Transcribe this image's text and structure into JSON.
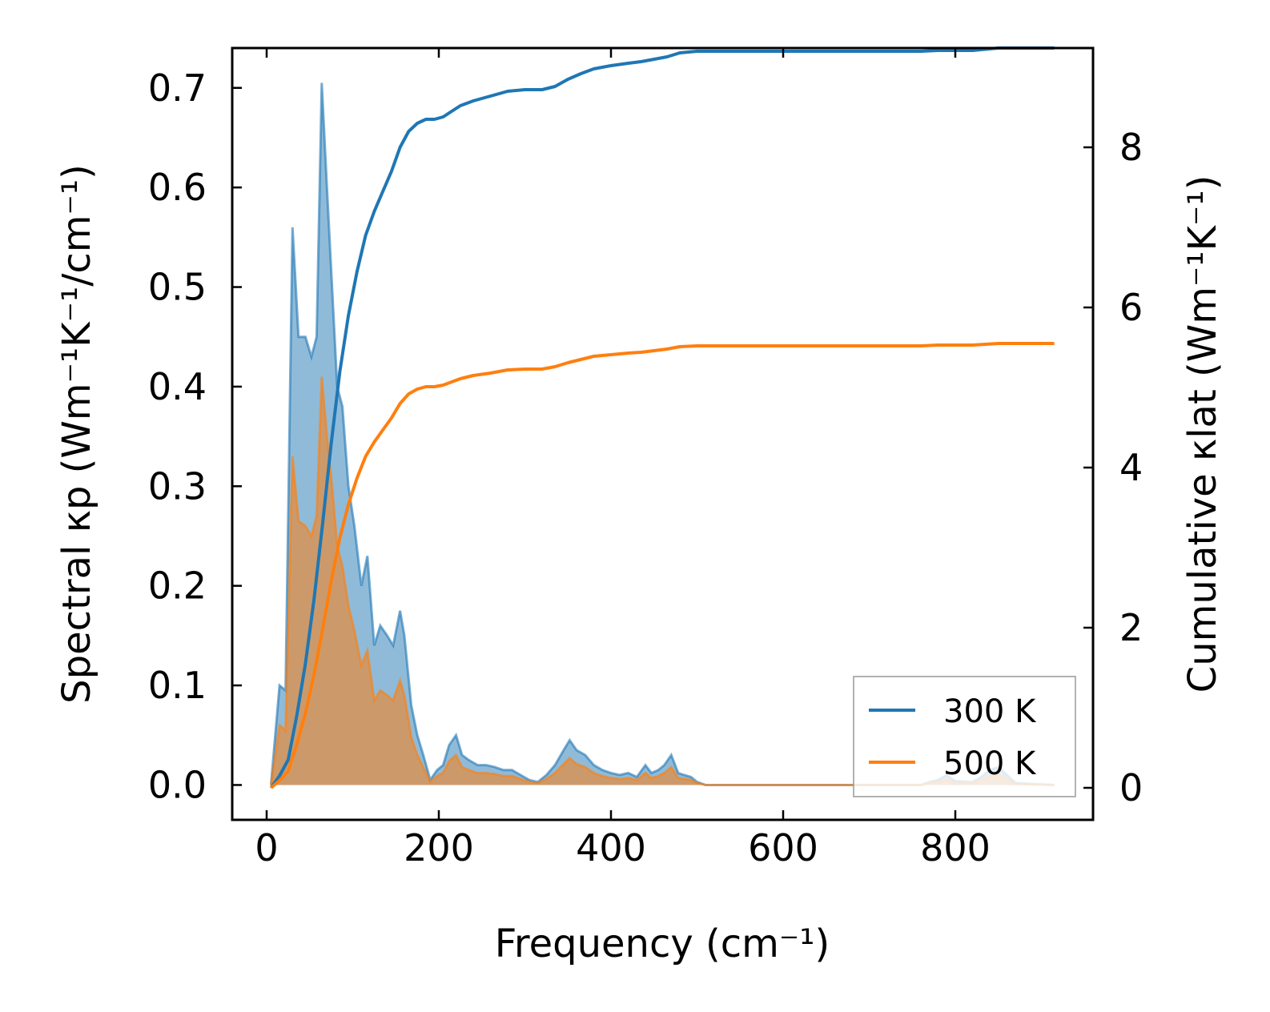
{
  "chart_data": {
    "type": "area+line (dual y-axis)",
    "xlabel": "Frequency (cm⁻¹)",
    "ylabel_left": "Spectral κp (Wm⁻¹K⁻¹/cm⁻¹)",
    "ylabel_right": "Cumulative κlat (Wm⁻¹K⁻¹)",
    "xlim": [
      -40,
      960
    ],
    "ylim_left": [
      -0.035,
      0.74
    ],
    "ylim_right": [
      -0.4,
      9.24
    ],
    "x_ticks": [
      "0",
      "200",
      "400",
      "600",
      "800"
    ],
    "x_tick_values": [
      0,
      200,
      400,
      600,
      800
    ],
    "y_left_ticks": [
      "0.0",
      "0.1",
      "0.2",
      "0.3",
      "0.4",
      "0.5",
      "0.6",
      "0.7"
    ],
    "y_left_tick_values": [
      0.0,
      0.1,
      0.2,
      0.3,
      0.4,
      0.5,
      0.6,
      0.7
    ],
    "y_right_ticks": [
      "0",
      "2",
      "4",
      "6",
      "8"
    ],
    "y_right_tick_values": [
      0,
      2,
      4,
      6,
      8
    ],
    "legend": {
      "location": "lower right",
      "entries": [
        "300 K",
        "500 K"
      ]
    },
    "colors": {
      "300 K": "#1f77b4",
      "500 K": "#ff7f0e"
    },
    "series": [
      {
        "name": "300 K",
        "spectral": {
          "x": [
            5,
            15,
            22,
            30,
            37,
            45,
            52,
            58,
            64,
            70,
            76,
            82,
            88,
            95,
            102,
            110,
            117,
            125,
            132,
            140,
            147,
            155,
            160,
            168,
            175,
            182,
            190,
            198,
            205,
            212,
            220,
            227,
            235,
            245,
            255,
            265,
            275,
            285,
            295,
            305,
            315,
            325,
            335,
            345,
            352,
            360,
            370,
            380,
            390,
            400,
            410,
            420,
            430,
            440,
            447,
            455,
            462,
            470,
            478,
            485,
            493,
            500,
            510,
            760,
            770,
            780,
            790,
            800,
            820,
            830,
            840,
            850,
            860,
            870,
            915
          ],
          "y": [
            0.0,
            0.1,
            0.095,
            0.56,
            0.45,
            0.45,
            0.43,
            0.45,
            0.705,
            0.6,
            0.5,
            0.4,
            0.38,
            0.3,
            0.26,
            0.2,
            0.23,
            0.14,
            0.16,
            0.15,
            0.14,
            0.175,
            0.15,
            0.08,
            0.05,
            0.03,
            0.005,
            0.015,
            0.02,
            0.04,
            0.05,
            0.03,
            0.025,
            0.02,
            0.02,
            0.018,
            0.015,
            0.015,
            0.01,
            0.005,
            0.003,
            0.01,
            0.02,
            0.035,
            0.045,
            0.035,
            0.03,
            0.02,
            0.015,
            0.012,
            0.01,
            0.012,
            0.008,
            0.02,
            0.012,
            0.015,
            0.02,
            0.03,
            0.012,
            0.01,
            0.008,
            0.003,
            0.0,
            0.0,
            0.003,
            0.005,
            0.01,
            0.004,
            0.003,
            0.008,
            0.015,
            0.018,
            0.01,
            0.002,
            0.0
          ]
        },
        "cumulative": {
          "x": [
            5,
            15,
            25,
            35,
            45,
            55,
            65,
            75,
            85,
            95,
            105,
            115,
            125,
            135,
            145,
            155,
            165,
            175,
            185,
            195,
            205,
            215,
            225,
            240,
            260,
            280,
            300,
            320,
            335,
            350,
            365,
            380,
            400,
            420,
            435,
            450,
            465,
            480,
            500,
            520,
            600,
            760,
            780,
            820,
            850,
            915
          ],
          "y": [
            0.0,
            0.15,
            0.35,
            0.9,
            1.55,
            2.35,
            3.3,
            4.3,
            5.2,
            5.9,
            6.45,
            6.9,
            7.2,
            7.45,
            7.7,
            8.0,
            8.2,
            8.3,
            8.35,
            8.35,
            8.38,
            8.45,
            8.52,
            8.58,
            8.64,
            8.7,
            8.72,
            8.72,
            8.76,
            8.85,
            8.92,
            8.98,
            9.02,
            9.05,
            9.07,
            9.1,
            9.13,
            9.18,
            9.2,
            9.2,
            9.2,
            9.2,
            9.21,
            9.21,
            9.24,
            9.24
          ]
        }
      },
      {
        "name": "500 K",
        "spectral": {
          "x": [
            5,
            15,
            22,
            30,
            37,
            45,
            52,
            58,
            64,
            70,
            76,
            82,
            88,
            95,
            102,
            110,
            117,
            125,
            132,
            140,
            147,
            155,
            160,
            168,
            175,
            182,
            190,
            198,
            205,
            212,
            220,
            227,
            235,
            245,
            255,
            265,
            275,
            285,
            295,
            305,
            315,
            325,
            335,
            345,
            352,
            360,
            370,
            380,
            390,
            400,
            410,
            420,
            430,
            440,
            447,
            455,
            462,
            470,
            478,
            485,
            493,
            500,
            510,
            760,
            770,
            780,
            790,
            800,
            820,
            830,
            840,
            850,
            860,
            870,
            915
          ],
          "y": [
            0.0,
            0.06,
            0.055,
            0.33,
            0.265,
            0.26,
            0.25,
            0.27,
            0.41,
            0.35,
            0.3,
            0.24,
            0.22,
            0.18,
            0.155,
            0.12,
            0.135,
            0.085,
            0.095,
            0.09,
            0.085,
            0.105,
            0.09,
            0.048,
            0.03,
            0.018,
            0.003,
            0.009,
            0.012,
            0.024,
            0.03,
            0.018,
            0.015,
            0.012,
            0.012,
            0.011,
            0.009,
            0.009,
            0.006,
            0.003,
            0.002,
            0.006,
            0.012,
            0.021,
            0.027,
            0.021,
            0.018,
            0.012,
            0.009,
            0.007,
            0.006,
            0.007,
            0.005,
            0.012,
            0.007,
            0.009,
            0.012,
            0.018,
            0.007,
            0.006,
            0.005,
            0.002,
            0.0,
            0.0,
            0.002,
            0.003,
            0.006,
            0.002,
            0.002,
            0.005,
            0.009,
            0.011,
            0.006,
            0.001,
            0.0
          ]
        },
        "cumulative": {
          "x": [
            5,
            15,
            25,
            35,
            45,
            55,
            65,
            75,
            85,
            95,
            105,
            115,
            125,
            135,
            145,
            155,
            165,
            175,
            185,
            195,
            205,
            215,
            225,
            240,
            260,
            280,
            300,
            320,
            335,
            350,
            365,
            380,
            400,
            420,
            435,
            450,
            465,
            480,
            500,
            520,
            600,
            760,
            780,
            820,
            850,
            915
          ],
          "y": [
            0.0,
            0.09,
            0.21,
            0.54,
            0.93,
            1.41,
            1.98,
            2.58,
            3.12,
            3.54,
            3.87,
            4.14,
            4.32,
            4.47,
            4.62,
            4.8,
            4.92,
            4.98,
            5.01,
            5.01,
            5.03,
            5.07,
            5.11,
            5.15,
            5.18,
            5.22,
            5.23,
            5.23,
            5.26,
            5.31,
            5.35,
            5.39,
            5.41,
            5.43,
            5.44,
            5.46,
            5.48,
            5.51,
            5.52,
            5.52,
            5.52,
            5.52,
            5.53,
            5.53,
            5.55,
            5.55
          ]
        }
      }
    ]
  }
}
